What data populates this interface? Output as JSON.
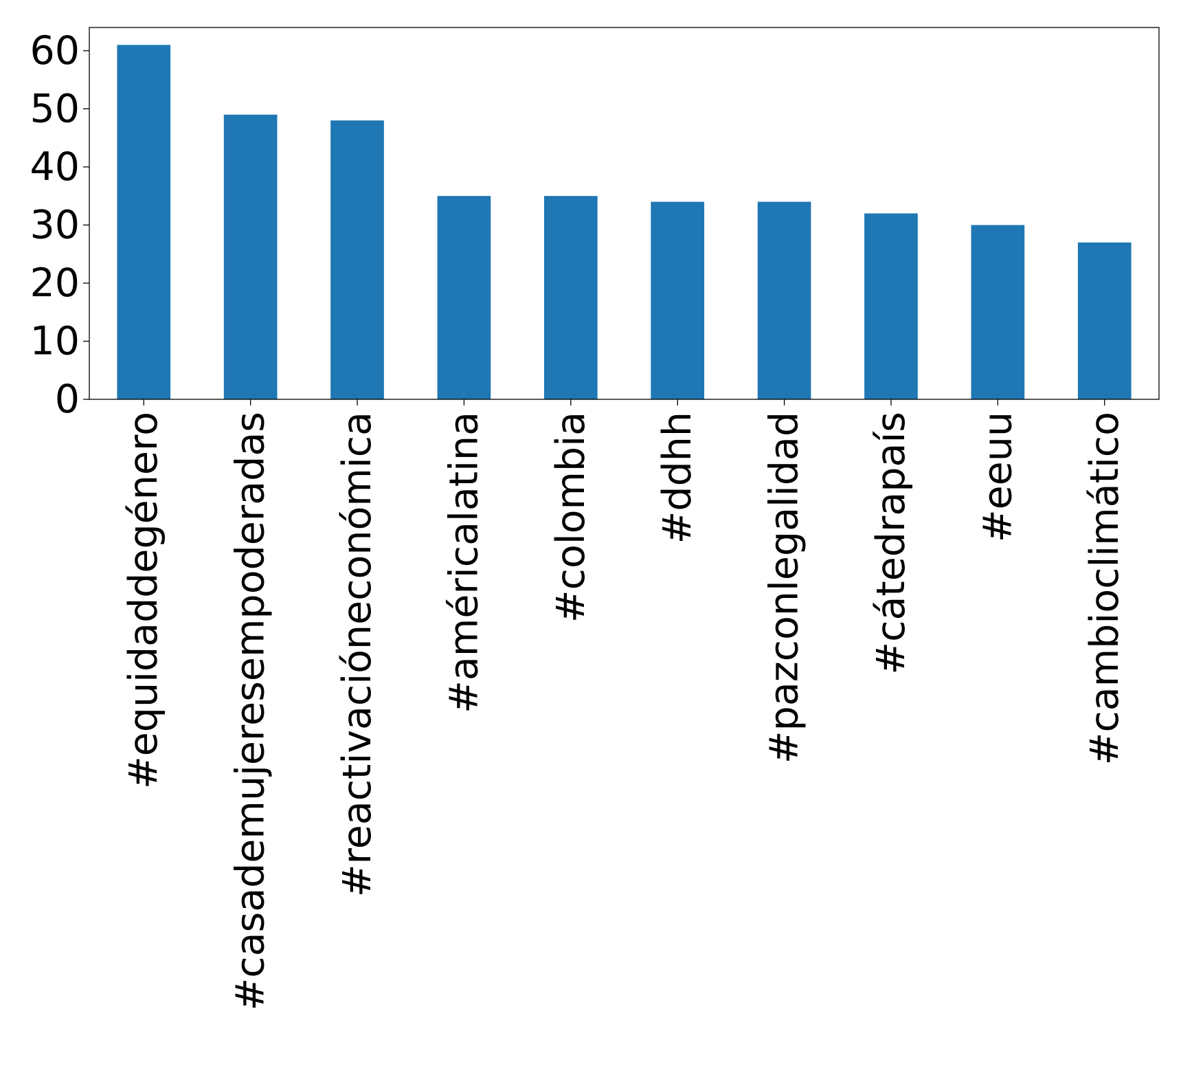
{
  "chart_data": {
    "type": "bar",
    "categories": [
      "#equidaddegénero",
      "#casademujeresempoderadas",
      "#reactivacióneconómica",
      "#américalatina",
      "#colombia",
      "#ddhh",
      "#pazconlegalidad",
      "#cátedrapaís",
      "#eeuu",
      "#cambioclimático"
    ],
    "values": [
      61,
      49,
      48,
      35,
      35,
      34,
      34,
      32,
      30,
      27
    ],
    "title": "",
    "xlabel": "",
    "ylabel": "",
    "ylim": [
      0,
      64
    ],
    "yticks": [
      0,
      10,
      20,
      30,
      40,
      50,
      60
    ],
    "grid": false,
    "legend": "none",
    "bar_color": "#1f77b4"
  }
}
